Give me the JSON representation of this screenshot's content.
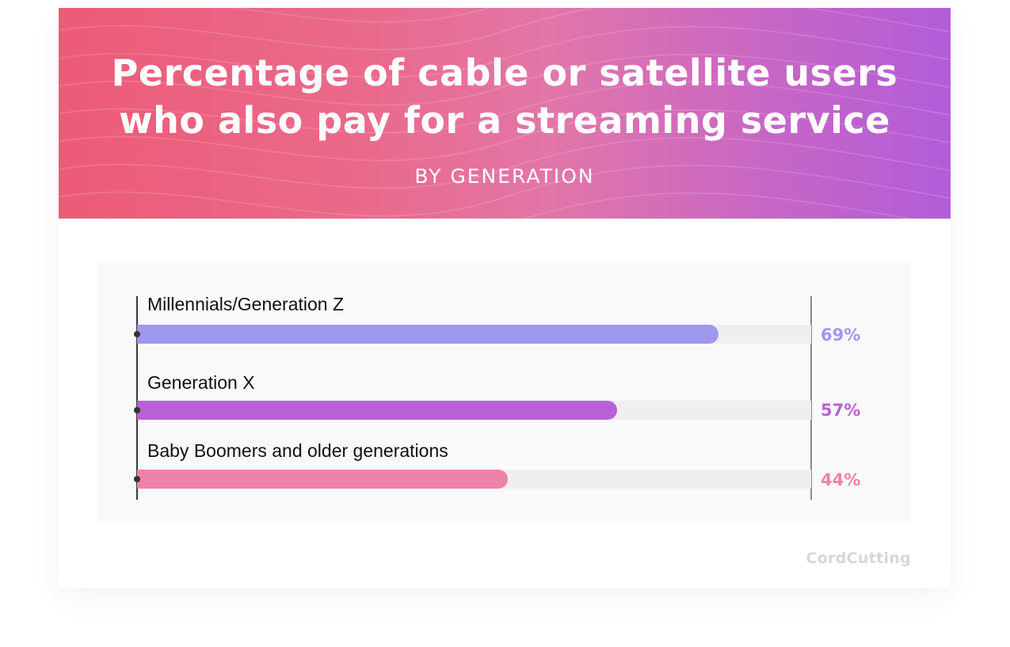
{
  "header": {
    "title_line1": "Percentage of cable or satellite users",
    "title_line2": "who also pay for a streaming service",
    "subtitle": "BY GENERATION",
    "gradient_start": "#ec5b77",
    "gradient_end": "#b25cd9"
  },
  "bars": [
    {
      "label": "Millennials/Generation Z",
      "value": 69,
      "value_label": "69%",
      "color": "#9f97f0"
    },
    {
      "label": "Generation X",
      "value": 57,
      "value_label": "57%",
      "color": "#b961d6"
    },
    {
      "label": "Baby Boomers and older generations",
      "value": 44,
      "value_label": "44%",
      "color": "#ec82aa"
    }
  ],
  "brand": {
    "logo_text": "CordCutting"
  },
  "chart_data": {
    "type": "bar",
    "orientation": "horizontal",
    "title": "Percentage of cable or satellite users who also pay for a streaming service",
    "subtitle": "BY GENERATION",
    "categories": [
      "Millennials/Generation Z",
      "Generation X",
      "Baby Boomers and older generations"
    ],
    "values": [
      69,
      57,
      44
    ],
    "value_labels": [
      "69%",
      "57%",
      "44%"
    ],
    "colors": [
      "#9f97f0",
      "#b961d6",
      "#ec82aa"
    ],
    "xlabel": "",
    "ylabel": "",
    "xlim": [
      0,
      100
    ],
    "unit": "%",
    "grid": false,
    "legend": false
  }
}
